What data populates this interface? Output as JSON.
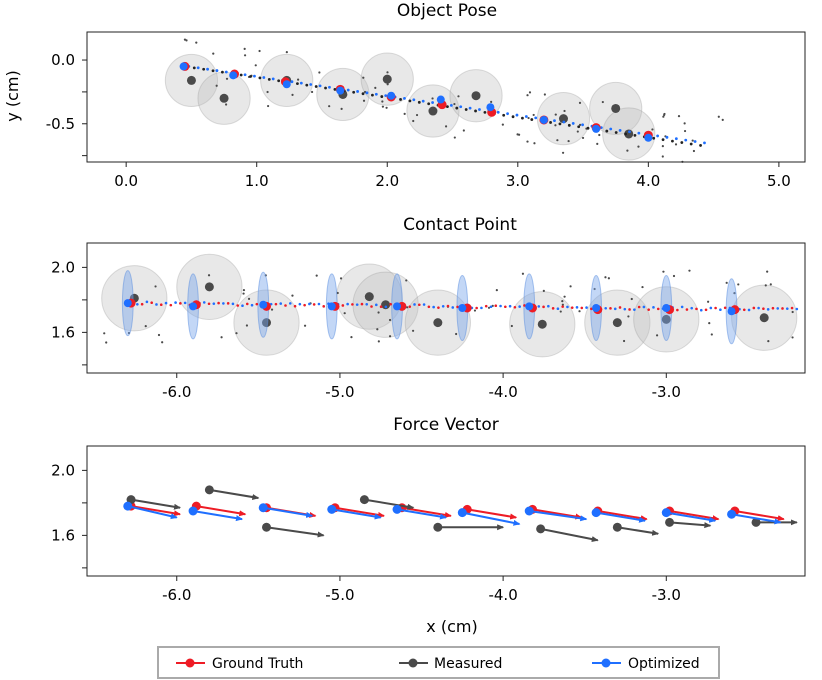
{
  "figure": {
    "shared_xlabel": "x (cm)",
    "legend": [
      {
        "label": "Ground Truth",
        "color": "#ee1c25"
      },
      {
        "label": "Measured",
        "color": "#4a4a4a"
      },
      {
        "label": "Optimized",
        "color": "#1f6fff"
      }
    ]
  },
  "chart_data": [
    {
      "type": "scatter",
      "title": "Object Pose",
      "xlabel": "",
      "ylabel": "y (cm)",
      "xlim": [
        -0.3,
        5.2
      ],
      "ylim": [
        -0.8,
        0.22
      ],
      "xticks": [
        0.0,
        1.0,
        2.0,
        3.0,
        4.0,
        5.0
      ],
      "xtick_labels": [
        "0.0",
        "1.0",
        "2.0",
        "3.0",
        "4.0",
        "5.0"
      ],
      "yticks": [
        0.0,
        -0.5
      ],
      "ytick_labels": [
        "0.0",
        "-0.5"
      ],
      "ground_truth": {
        "x": [
          0.45,
          0.83,
          1.22,
          1.64,
          2.03,
          2.42,
          2.8,
          3.2,
          3.6,
          4.0
        ],
        "y": [
          -0.05,
          -0.11,
          -0.17,
          -0.23,
          -0.29,
          -0.35,
          -0.41,
          -0.47,
          -0.53,
          -0.59
        ]
      },
      "measured": {
        "x": [
          0.5,
          0.75,
          1.23,
          1.66,
          2.0,
          2.35,
          2.68,
          3.35,
          3.75,
          3.85
        ],
        "y": [
          -0.16,
          -0.3,
          -0.16,
          -0.27,
          -0.15,
          -0.4,
          -0.28,
          -0.46,
          -0.38,
          -0.58
        ]
      },
      "measured_radius": 0.2,
      "optimized": {
        "x": [
          0.44,
          0.82,
          1.23,
          1.64,
          2.03,
          2.41,
          2.79,
          3.2,
          3.6,
          4.0
        ],
        "y": [
          -0.05,
          -0.12,
          -0.19,
          -0.24,
          -0.28,
          -0.31,
          -0.37,
          -0.47,
          -0.54,
          -0.61
        ]
      },
      "trace_start": [
        0.45,
        -0.05
      ],
      "trace_end_gt": [
        4.4,
        -0.67
      ],
      "trace_end_opt": [
        4.4,
        -0.65
      ]
    },
    {
      "type": "scatter",
      "title": "Contact Point",
      "xlabel": "",
      "ylabel": "",
      "xlim": [
        -6.55,
        -2.15
      ],
      "ylim": [
        1.35,
        2.15
      ],
      "xticks": [
        -6.0,
        -5.0,
        -4.0,
        -3.0
      ],
      "xtick_labels": [
        "-6.0",
        "-5.0",
        "-4.0",
        "-3.0"
      ],
      "yticks": [
        2.0,
        1.6
      ],
      "ytick_labels": [
        "2.0",
        "1.6"
      ],
      "ground_truth": {
        "x": [
          -6.28,
          -5.88,
          -5.45,
          -5.03,
          -4.62,
          -4.22,
          -3.82,
          -3.42,
          -2.98,
          -2.58
        ],
        "y": [
          1.78,
          1.77,
          1.76,
          1.76,
          1.76,
          1.75,
          1.75,
          1.74,
          1.74,
          1.74
        ]
      },
      "measured": {
        "x": [
          -6.26,
          -5.8,
          -5.45,
          -4.82,
          -4.72,
          -4.4,
          -3.76,
          -3.3,
          -3.0,
          -2.4
        ],
        "y": [
          1.81,
          1.88,
          1.66,
          1.82,
          1.77,
          1.66,
          1.65,
          1.66,
          1.68,
          1.69
        ]
      },
      "measured_radius": 0.2,
      "optimized": {
        "x": [
          -6.3,
          -5.9,
          -5.47,
          -5.05,
          -4.65,
          -4.25,
          -3.84,
          -3.43,
          -3.0,
          -2.6
        ],
        "y": [
          1.78,
          1.76,
          1.77,
          1.76,
          1.76,
          1.75,
          1.76,
          1.75,
          1.75,
          1.73
        ]
      },
      "optimized_ellipse": {
        "rx": 0.033,
        "ry": 0.2
      },
      "trace_start": [
        -6.3,
        1.78
      ],
      "trace_end": [
        -2.2,
        1.74
      ]
    },
    {
      "type": "vector",
      "title": "Force Vector",
      "xlabel": "x (cm)",
      "ylabel": "",
      "xlim": [
        -6.55,
        -2.15
      ],
      "ylim": [
        1.35,
        2.15
      ],
      "xticks": [
        -6.0,
        -5.0,
        -4.0,
        -3.0
      ],
      "xtick_labels": [
        "-6.0",
        "-5.0",
        "-4.0",
        "-3.0"
      ],
      "yticks": [
        2.0,
        1.6
      ],
      "ytick_labels": [
        "2.0",
        "1.6"
      ],
      "ground_truth": [
        {
          "x": -6.28,
          "y": 1.78,
          "dx": 0.3,
          "dy": -0.05
        },
        {
          "x": -5.88,
          "y": 1.78,
          "dx": 0.3,
          "dy": -0.05
        },
        {
          "x": -5.45,
          "y": 1.77,
          "dx": 0.3,
          "dy": -0.05
        },
        {
          "x": -5.03,
          "y": 1.77,
          "dx": 0.3,
          "dy": -0.05
        },
        {
          "x": -4.62,
          "y": 1.77,
          "dx": 0.3,
          "dy": -0.05
        },
        {
          "x": -4.22,
          "y": 1.76,
          "dx": 0.3,
          "dy": -0.05
        },
        {
          "x": -3.82,
          "y": 1.76,
          "dx": 0.3,
          "dy": -0.05
        },
        {
          "x": -3.42,
          "y": 1.75,
          "dx": 0.3,
          "dy": -0.05
        },
        {
          "x": -2.98,
          "y": 1.75,
          "dx": 0.3,
          "dy": -0.05
        },
        {
          "x": -2.58,
          "y": 1.75,
          "dx": 0.3,
          "dy": -0.05
        }
      ],
      "measured": [
        {
          "x": -6.28,
          "y": 1.82,
          "dx": 0.3,
          "dy": -0.05
        },
        {
          "x": -5.8,
          "y": 1.88,
          "dx": 0.3,
          "dy": -0.05
        },
        {
          "x": -5.45,
          "y": 1.65,
          "dx": 0.35,
          "dy": -0.05
        },
        {
          "x": -4.85,
          "y": 1.82,
          "dx": 0.3,
          "dy": -0.05
        },
        {
          "x": -4.4,
          "y": 1.65,
          "dx": 0.4,
          "dy": 0.0
        },
        {
          "x": -3.77,
          "y": 1.64,
          "dx": 0.35,
          "dy": -0.07
        },
        {
          "x": -3.3,
          "y": 1.65,
          "dx": 0.25,
          "dy": -0.04
        },
        {
          "x": -2.98,
          "y": 1.68,
          "dx": 0.25,
          "dy": -0.02
        },
        {
          "x": -2.45,
          "y": 1.68,
          "dx": 0.25,
          "dy": 0.0
        }
      ],
      "optimized": [
        {
          "x": -6.3,
          "y": 1.78,
          "dx": 0.3,
          "dy": -0.07
        },
        {
          "x": -5.9,
          "y": 1.75,
          "dx": 0.3,
          "dy": -0.05
        },
        {
          "x": -5.47,
          "y": 1.77,
          "dx": 0.3,
          "dy": -0.05
        },
        {
          "x": -5.05,
          "y": 1.76,
          "dx": 0.3,
          "dy": -0.05
        },
        {
          "x": -4.65,
          "y": 1.76,
          "dx": 0.3,
          "dy": -0.05
        },
        {
          "x": -4.25,
          "y": 1.74,
          "dx": 0.35,
          "dy": -0.07
        },
        {
          "x": -3.84,
          "y": 1.75,
          "dx": 0.35,
          "dy": -0.05
        },
        {
          "x": -3.43,
          "y": 1.74,
          "dx": 0.3,
          "dy": -0.05
        },
        {
          "x": -3.0,
          "y": 1.74,
          "dx": 0.3,
          "dy": -0.05
        },
        {
          "x": -2.6,
          "y": 1.73,
          "dx": 0.3,
          "dy": -0.05
        }
      ]
    }
  ]
}
